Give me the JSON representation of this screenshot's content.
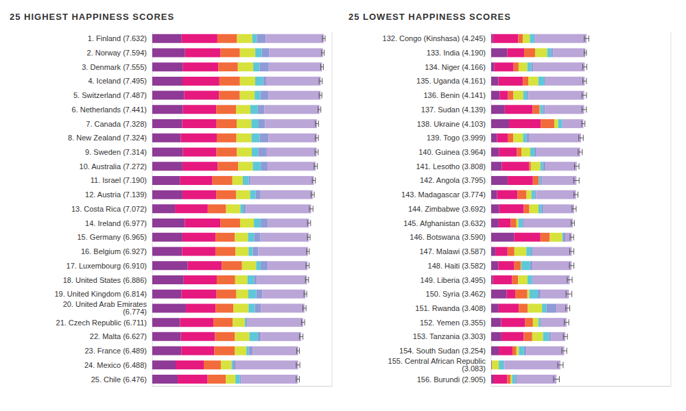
{
  "chart_data": [
    {
      "type": "bar",
      "title": "25 HIGHEST HAPPINESS SCORES",
      "orientation": "horizontal",
      "stacked": true,
      "grid": true,
      "tick_labels": "y",
      "categories": [
        "1. Finland (7.632)",
        "2. Norway (7.594)",
        "3. Denmark (7.555)",
        "4. Iceland (7.495)",
        "5. Switzerland (7.487)",
        "6. Netherlands (7.441)",
        "7. Canada (7.328)",
        "8. New Zealand (7.324)",
        "9. Sweden (7.314)",
        "10. Australia (7.272)",
        "11. Israel (7.190)",
        "12. Austria (7.139)",
        "13. Costa Rica (7.072)",
        "14. Ireland (6.977)",
        "15. Germany (6.965)",
        "16. Belgium (6.927)",
        "17. Luxembourg (6.910)",
        "18. United States (6.886)",
        "19. United Kingdom (6.814)",
        "20. United Arab Emirates (6.774)",
        "21. Czech Republic (6.711)",
        "22. Malta (6.627)",
        "23. France (6.489)",
        "24. Mexico (6.488)",
        "25. Chile (6.476)"
      ],
      "series": [
        {
          "color": "#8e3a96",
          "values": [
            1.305,
            1.456,
            1.351,
            1.343,
            1.42,
            1.361,
            1.33,
            1.268,
            1.355,
            1.34,
            1.244,
            1.341,
            1.01,
            1.448,
            1.34,
            1.324,
            1.576,
            1.398,
            1.301,
            1.495,
            1.233,
            1.27,
            1.293,
            1.038,
            1.131
          ]
        },
        {
          "color": "#e6197f",
          "values": [
            1.592,
            1.582,
            1.59,
            1.644,
            1.549,
            1.488,
            1.532,
            1.601,
            1.501,
            1.573,
            1.433,
            1.504,
            1.459,
            1.583,
            1.474,
            1.483,
            1.52,
            1.471,
            1.559,
            1.32,
            1.489,
            1.525,
            1.466,
            1.252,
            1.331
          ]
        },
        {
          "color": "#f26b3a",
          "values": [
            0.874,
            0.861,
            0.868,
            0.914,
            0.927,
            0.878,
            0.896,
            0.876,
            0.913,
            0.91,
            0.888,
            0.891,
            0.817,
            0.876,
            0.861,
            0.894,
            0.896,
            0.819,
            0.883,
            0.79,
            0.854,
            0.884,
            0.908,
            0.761,
            0.808
          ]
        },
        {
          "color": "#d7e23c",
          "values": [
            0.681,
            0.686,
            0.683,
            0.677,
            0.66,
            0.638,
            0.653,
            0.669,
            0.659,
            0.647,
            0.464,
            0.617,
            0.632,
            0.614,
            0.586,
            0.583,
            0.632,
            0.547,
            0.533,
            0.68,
            0.543,
            0.645,
            0.52,
            0.479,
            0.431
          ]
        },
        {
          "color": "#5ec8d8",
          "values": [
            0.202,
            0.286,
            0.284,
            0.353,
            0.256,
            0.333,
            0.321,
            0.365,
            0.285,
            0.361,
            0.262,
            0.242,
            0.143,
            0.307,
            0.273,
            0.188,
            0.196,
            0.291,
            0.354,
            0.28,
            0.064,
            0.376,
            0.098,
            0.069,
            0.197
          ]
        },
        {
          "color": "#8e9bd6",
          "values": [
            0.393,
            0.34,
            0.408,
            0.138,
            0.357,
            0.295,
            0.291,
            0.389,
            0.383,
            0.302,
            0.082,
            0.224,
            0.101,
            0.306,
            0.28,
            0.24,
            0.321,
            0.133,
            0.272,
            0.28,
            0.034,
            0.142,
            0.176,
            0.095,
            0.061
          ]
        },
        {
          "color": "#bba6d8",
          "values": [
            2.585,
            2.383,
            2.371,
            2.426,
            2.318,
            2.448,
            2.305,
            2.156,
            2.218,
            2.139,
            2.817,
            2.32,
            2.91,
            1.843,
            2.151,
            2.215,
            1.769,
            2.227,
            1.912,
            1.929,
            2.494,
            1.785,
            2.028,
            2.794,
            2.517
          ]
        }
      ],
      "errors": [
        0.06,
        0.06,
        0.06,
        0.07,
        0.06,
        0.06,
        0.07,
        0.07,
        0.07,
        0.07,
        0.07,
        0.07,
        0.08,
        0.07,
        0.06,
        0.06,
        0.07,
        0.07,
        0.06,
        0.07,
        0.07,
        0.08,
        0.06,
        0.08,
        0.07
      ],
      "xlim": [
        0,
        8
      ],
      "xticks": [
        0,
        1,
        2,
        3,
        4,
        5,
        6,
        7,
        8
      ]
    },
    {
      "type": "bar",
      "title": "25 LOWEST HAPPINESS SCORES",
      "orientation": "horizontal",
      "stacked": true,
      "grid": true,
      "tick_labels": "y",
      "categories": [
        "132. Congo (Kinshasa) (4.245)",
        "133. India (4.190)",
        "134. Niger (4.166)",
        "135. Uganda (4.161)",
        "136. Benin (4.141)",
        "137. Sudan (4.139)",
        "138. Ukraine (4.103)",
        "139. Togo (3.999)",
        "140. Guinea (3.964)",
        "141. Lesotho (3.808)",
        "142. Angola (3.795)",
        "143. Madagascar (3.774)",
        "144. Zimbabwe (3.692)",
        "145. Afghanistan (3.632)",
        "146. Botswana (3.590)",
        "147. Malawi (3.587)",
        "148. Haiti (3.582)",
        "149. Liberia (3.495)",
        "150. Syria (3.462)",
        "151. Rwanda (3.408)",
        "152. Yemen (3.355)",
        "153. Tanzania (3.303)",
        "154. South Sudan (3.254)",
        "155. Central African Republic (3.083)",
        "156. Burundi (2.905)"
      ],
      "series": [
        {
          "color": "#8e3a96",
          "values": [
            0.069,
            0.721,
            0.131,
            0.322,
            0.378,
            0.605,
            0.793,
            0.259,
            0.344,
            0.472,
            0.73,
            0.262,
            0.357,
            0.332,
            1.017,
            0.186,
            0.315,
            0.076,
            0.689,
            0.332,
            0.442,
            0.455,
            0.337,
            0.024,
            0.091
          ]
        },
        {
          "color": "#e6197f",
          "values": [
            1.136,
            0.747,
            0.867,
            1.09,
            0.372,
            1.24,
            1.413,
            0.474,
            0.792,
            1.215,
            1.125,
            0.908,
            1.094,
            0.537,
            1.174,
            0.541,
            0.714,
            0.858,
            0.382,
            0.896,
            1.073,
            0.991,
            0.608,
            0.0,
            0.627
          ]
        },
        {
          "color": "#f26b3a",
          "values": [
            0.204,
            0.485,
            0.221,
            0.237,
            0.24,
            0.312,
            0.609,
            0.253,
            0.211,
            0.079,
            0.269,
            0.402,
            0.248,
            0.255,
            0.417,
            0.306,
            0.289,
            0.267,
            0.539,
            0.4,
            0.343,
            0.381,
            0.177,
            0.01,
            0.145
          ]
        },
        {
          "color": "#d7e23c",
          "values": [
            0.312,
            0.539,
            0.39,
            0.45,
            0.44,
            0.016,
            0.163,
            0.434,
            0.394,
            0.423,
            0.0,
            0.221,
            0.406,
            0.085,
            0.557,
            0.531,
            0.025,
            0.419,
            0.088,
            0.636,
            0.244,
            0.481,
            0.112,
            0.305,
            0.065
          ]
        },
        {
          "color": "#5ec8d8",
          "values": [
            0.197,
            0.172,
            0.175,
            0.259,
            0.163,
            0.134,
            0.187,
            0.158,
            0.185,
            0.116,
            0.079,
            0.155,
            0.132,
            0.191,
            0.042,
            0.21,
            0.392,
            0.206,
            0.376,
            0.2,
            0.083,
            0.27,
            0.224,
            0.218,
            0.149
          ]
        },
        {
          "color": "#8e9bd6",
          "values": [
            0.052,
            0.093,
            0.099,
            0.061,
            0.067,
            0.082,
            0.011,
            0.101,
            0.094,
            0.112,
            0.061,
            0.049,
            0.099,
            0.036,
            0.092,
            0.08,
            0.104,
            0.03,
            0.144,
            0.444,
            0.064,
            0.097,
            0.106,
            0.038,
            0.076
          ]
        },
        {
          "color": "#bba6d8",
          "values": [
            2.275,
            1.433,
            2.283,
            1.742,
            2.481,
            1.75,
            0.927,
            2.32,
            1.944,
            1.391,
            1.531,
            1.777,
            1.356,
            2.196,
            0.291,
            1.733,
            1.743,
            1.639,
            1.244,
            0.5,
            1.106,
            0.628,
            1.69,
            2.488,
            1.752
          ]
        }
      ],
      "errors": [
        0.1,
        0.05,
        0.09,
        0.08,
        0.1,
        0.1,
        0.07,
        0.1,
        0.09,
        0.1,
        0.12,
        0.09,
        0.09,
        0.07,
        0.08,
        0.09,
        0.1,
        0.11,
        0.13,
        0.09,
        0.1,
        0.09,
        0.11,
        0.12,
        0.13
      ],
      "xlim": [
        0,
        8
      ],
      "xticks": [
        0,
        1,
        2,
        3,
        4,
        5,
        6,
        7,
        8
      ]
    }
  ]
}
